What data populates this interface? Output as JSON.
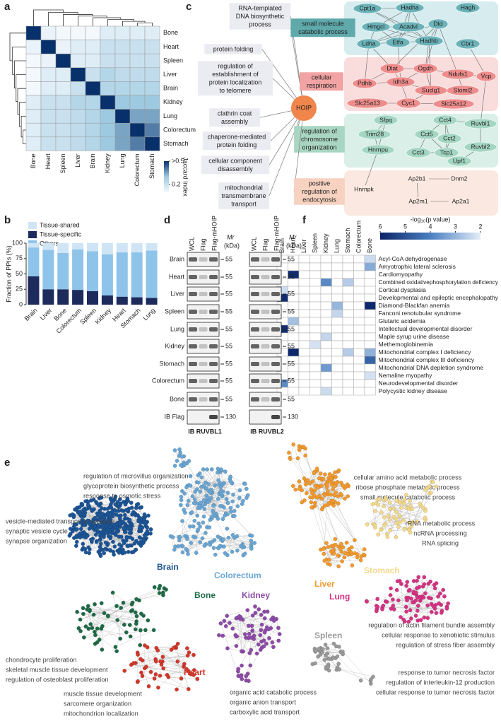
{
  "panel_labels": [
    "a",
    "b",
    "c",
    "d",
    "e",
    "f"
  ],
  "chart_data": [
    {
      "type": "heatmap",
      "categories": [
        "Bone",
        "Heart",
        "Spleen",
        "Liver",
        "Brain",
        "Kidney",
        "Lung",
        "Colorectum",
        "Stomach"
      ],
      "values": [
        [
          1,
          0.12,
          0.1,
          0.1,
          0.1,
          0.15,
          0.15,
          0.15,
          0.15
        ],
        [
          0.12,
          1,
          0.12,
          0.15,
          0.15,
          0.2,
          0.2,
          0.2,
          0.2
        ],
        [
          0.1,
          0.12,
          1,
          0.15,
          0.15,
          0.2,
          0.2,
          0.2,
          0.2
        ],
        [
          0.1,
          0.15,
          0.15,
          1,
          0.2,
          0.25,
          0.22,
          0.22,
          0.22
        ],
        [
          0.1,
          0.15,
          0.15,
          0.2,
          1,
          0.25,
          0.25,
          0.25,
          0.25
        ],
        [
          0.15,
          0.2,
          0.2,
          0.25,
          0.25,
          1,
          0.3,
          0.3,
          0.3
        ],
        [
          0.15,
          0.2,
          0.2,
          0.22,
          0.25,
          0.3,
          1,
          0.35,
          0.35
        ],
        [
          0.15,
          0.2,
          0.2,
          0.22,
          0.25,
          0.3,
          0.35,
          1,
          0.4
        ],
        [
          0.15,
          0.2,
          0.2,
          0.22,
          0.25,
          0.3,
          0.35,
          0.4,
          1
        ]
      ],
      "zlim": [
        0.1,
        0.5
      ],
      "zticks": [
        {
          "value": 0.5,
          "label": ">0.5"
        },
        0.2
      ],
      "colorbar_title": "Jaccard index"
    },
    {
      "type": "bar",
      "categories": [
        "Brain",
        "Liver",
        "Bone",
        "Colorectum",
        "Spleen",
        "Kidney",
        "Heart",
        "Stomach",
        "Lung"
      ],
      "series": [
        {
          "name": "Tissue-shared",
          "color": "#cfe5f6",
          "values": [
            7,
            11,
            16,
            10,
            13,
            18,
            15,
            15,
            12
          ]
        },
        {
          "name": "Tissue-specific",
          "color": "#1c2a5c",
          "values": [
            46,
            25,
            25,
            24,
            22,
            15,
            13,
            12,
            11
          ]
        },
        {
          "name": "Others",
          "color": "#8fc4ea",
          "values": [
            47,
            64,
            59,
            66,
            65,
            67,
            72,
            73,
            77
          ]
        }
      ],
      "ylim": [
        0,
        100
      ],
      "yticks": [
        0,
        25,
        50,
        75,
        100
      ],
      "ylabel": "Fraction of PPIs (%)"
    },
    {
      "type": "heatmap",
      "categories": [
        "Brain",
        "Heart",
        "Liver",
        "Spleen",
        "Kidney",
        "Lung",
        "Stomach",
        "Colorectum",
        "Bone"
      ],
      "rows": [
        "Acyl-CoA dehydrogenase",
        "Amyotrophic lateral sclerosis",
        "Cardiomyopathy",
        "Combined oxidativephosphorylation deficiency",
        "Cortical dysplasia",
        "Developmental and epileptic encephalopathy",
        "Diamond-Blackfan anemia",
        "Fanconi renotubular syndrome",
        "Glutaric acidemia",
        "Intellectual developmental disorder",
        "Maple syrup urine disease",
        "Methemoglobinemia",
        "Mitochondrial complex I deficiency",
        "Mitochondrial complex III deficiency",
        "Mitochondrial DNA depletion syndrome",
        "Nemaline myopathy",
        "Neurodevelopmental disorder",
        "Polycystic kidney disease"
      ],
      "values": [
        [
          null,
          null,
          null,
          null,
          null,
          null,
          null,
          null,
          2.3
        ],
        [
          null,
          null,
          null,
          null,
          null,
          null,
          null,
          null,
          3.2
        ],
        [
          null,
          5.8,
          null,
          null,
          null,
          null,
          null,
          null,
          null
        ],
        [
          null,
          null,
          null,
          null,
          3.8,
          null,
          2.6,
          null,
          null
        ],
        [
          2.3,
          null,
          null,
          null,
          null,
          null,
          null,
          null,
          null
        ],
        [
          5.8,
          null,
          null,
          null,
          null,
          null,
          null,
          null,
          null
        ],
        [
          null,
          null,
          null,
          null,
          null,
          3.0,
          null,
          null,
          5.9
        ],
        [
          null,
          null,
          null,
          null,
          null,
          2.4,
          null,
          null,
          null
        ],
        [
          null,
          2.8,
          null,
          null,
          null,
          null,
          null,
          null,
          null
        ],
        [
          5.8,
          null,
          null,
          null,
          null,
          null,
          null,
          null,
          null
        ],
        [
          null,
          null,
          null,
          null,
          2.4,
          null,
          null,
          null,
          null
        ],
        [
          null,
          null,
          null,
          2.2,
          null,
          null,
          null,
          null,
          null
        ],
        [
          null,
          5.9,
          null,
          null,
          null,
          null,
          2.6,
          null,
          3.1
        ],
        [
          null,
          null,
          null,
          null,
          null,
          null,
          null,
          null,
          4.6
        ],
        [
          null,
          null,
          null,
          null,
          3.5,
          null,
          null,
          null,
          null
        ],
        [
          null,
          null,
          null,
          null,
          null,
          null,
          null,
          null,
          2.2
        ],
        [
          3.8,
          null,
          null,
          null,
          null,
          null,
          null,
          null,
          null
        ],
        [
          null,
          null,
          null,
          null,
          2.3,
          null,
          null,
          null,
          null
        ]
      ],
      "zlim": [
        6,
        2
      ],
      "zticks": [
        6,
        5,
        4,
        3,
        2
      ],
      "colorbar_title": "-log₁₀(p value)"
    }
  ],
  "network_c": {
    "hub": "HOIP",
    "left_terms": [
      [
        "RNA-templated",
        "DNA biosynthetic",
        "process"
      ],
      [
        "protein folding"
      ],
      [
        "regulation of",
        "establishment of",
        "protein localization",
        "to telomere"
      ],
      [
        "clathrin coat",
        "assembly"
      ],
      [
        "chaperone-mediated",
        "protein folding"
      ],
      [
        "cellular component",
        "disassembly"
      ],
      [
        "mitochondrial",
        "transmembrane",
        "transport"
      ]
    ],
    "right_terms": [
      [
        "small molecule",
        "catabolic process"
      ],
      [
        "cellular",
        "respiration"
      ],
      [
        "regulation of",
        "chromosome",
        "organization"
      ],
      [
        "positive",
        "regulation of",
        "endocytosis"
      ]
    ],
    "gene_groups": [
      [
        "Cpt1a",
        "Hadha",
        "Hagh",
        "Hmgcl",
        "Acadvl",
        "Dld",
        "Hadhb",
        "Ldha",
        "Etfa",
        "Cbr1"
      ],
      [
        "Dlat",
        "Ogdh",
        "Ndufs1",
        "Vcp",
        "Pdhb",
        "Idh3a",
        "Stoml2",
        "Suclg1",
        "Cyc1",
        "Slc25a13",
        "Slc25a12"
      ],
      [
        "Sfpq",
        "Cct4",
        "Ruvbl1",
        "Trim28",
        "Cct5",
        "Cct2",
        "Ruvbl2",
        "Hnrnpu",
        "Cct3",
        "Tcp1",
        "Upf1"
      ],
      [
        "Ap2b1",
        "Dnm2",
        "Ap2m1",
        "Ap2a1",
        "Hnrnpk"
      ]
    ]
  },
  "blots_d": {
    "lanes": [
      "WCL",
      "Flag",
      "Flag-mHOIP"
    ],
    "mr_label": [
      "Mr",
      "(kDa)"
    ],
    "rows": [
      "Brain",
      "Heart",
      "Liver",
      "Spleen",
      "Lung",
      "Kidney",
      "Stomach",
      "Colorectum",
      "Bone",
      "IB Flag"
    ],
    "mw": [
      55,
      55,
      55,
      55,
      55,
      55,
      55,
      55,
      55,
      130
    ],
    "antibodies": [
      "IB RUVBL1",
      "IB RUVBL2"
    ]
  },
  "networks_e": {
    "clusters": [
      {
        "name": "Brain",
        "color": "#1c5597",
        "annotation": [
          "vesicle-mediated transport in synapse",
          "synaptic vesicle cycle",
          "synapse organization"
        ]
      },
      {
        "name": "Colorectum",
        "color": "#6aa6d4",
        "annotation": [
          "regulation of microvillus organization",
          "glycoprotein biosynthetic process",
          "response to osmotic stress"
        ]
      },
      {
        "name": "Liver",
        "color": "#f29a2e",
        "annotation": [
          "cellular amino acid metabolic process",
          "ribose phosphate metabolic process",
          "small molecule catabolic process"
        ]
      },
      {
        "name": "Stomach",
        "color": "#f3d98c",
        "annotation": [
          "rRNA metabolic process",
          "ncRNA processing",
          "RNA splicing"
        ]
      },
      {
        "name": "Lung",
        "color": "#d63384",
        "annotation": [
          "regulation of actin filament bundle assembly",
          "cellular response to xenobiotic stimulus",
          "regulation of stress fiber assembly"
        ]
      },
      {
        "name": "Bone",
        "color": "#1f6b48",
        "annotation": [
          "chondrocyte proliferation",
          "skeletal muscle tissue development",
          "regulation of osteoblast proliferation"
        ]
      },
      {
        "name": "Kidney",
        "color": "#8e4ba8",
        "annotation": [
          "organic acid catabolic process",
          "organic anion transport",
          "carboxylic acid transport"
        ]
      },
      {
        "name": "Heart",
        "color": "#d1382b",
        "annotation": [
          "muscle tissue development",
          "sarcomere organization",
          "mitochondrion localization"
        ]
      },
      {
        "name": "Spleen",
        "color": "#9a9a9a",
        "annotation": [
          "response to tumor necrosis factor",
          "regulation of interleukin-12 production",
          "cellular response to tumor necrosis factor"
        ]
      }
    ]
  }
}
